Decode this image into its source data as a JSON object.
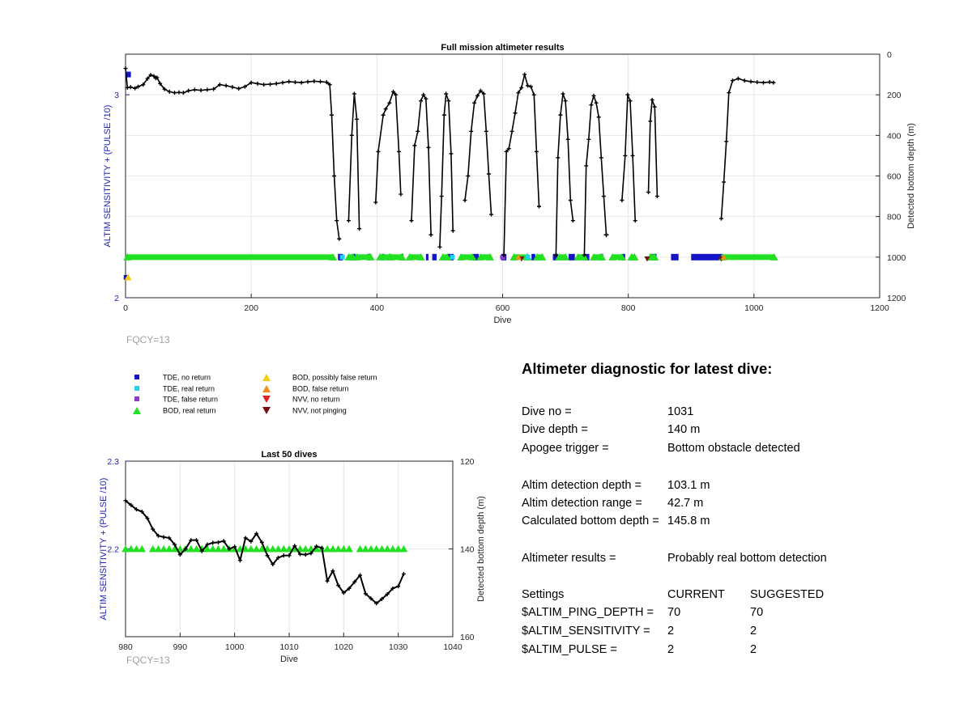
{
  "top_chart": {
    "title": "Full mission altimeter results",
    "xlabel": "Dive",
    "ylabel_left": "ALTIM SENSITIVITY + (PULSE /10)",
    "ylabel_right": "Detected bottom depth (m)",
    "x_ticks": [
      "0",
      "200",
      "400",
      "600",
      "800",
      "1000",
      "1200"
    ],
    "y_left_ticks": [
      "2",
      "3"
    ],
    "y_right_ticks": [
      "0",
      "200",
      "400",
      "600",
      "800",
      "1000",
      "1200"
    ],
    "footnote": "FQCY=13"
  },
  "bottom_chart": {
    "title": "Last 50 dives",
    "xlabel": "Dive",
    "ylabel_left": "ALTIM SENSITIVITY + (PULSE /10)",
    "ylabel_right": "Detected bottom depth (m)",
    "x_ticks": [
      "980",
      "990",
      "1000",
      "1010",
      "1020",
      "1030",
      "1040"
    ],
    "y_left_ticks": [
      "2.3",
      "2.2"
    ],
    "y_right_ticks": [
      "120",
      "140",
      "160"
    ],
    "footnote": "FQCY=13"
  },
  "legend": {
    "items": [
      {
        "label": "TDE, no return",
        "marker": "square",
        "color": "#1515c8"
      },
      {
        "label": "TDE, real return",
        "marker": "square",
        "color": "#22d0f0"
      },
      {
        "label": "TDE, false return",
        "marker": "square",
        "color": "#8a3ec8"
      },
      {
        "label": "BOD, real return",
        "marker": "triangle-up",
        "color": "#22e022"
      },
      {
        "label": "BOD, possibly false return",
        "marker": "triangle-up",
        "color": "#f5cc10"
      },
      {
        "label": "BOD, false return",
        "marker": "triangle-up",
        "color": "#f08c1e"
      },
      {
        "label": "NVV, no return",
        "marker": "triangle-down",
        "color": "#e02020"
      },
      {
        "label": "NVV, not pinging",
        "marker": "triangle-down",
        "color": "#7a0f0f"
      }
    ]
  },
  "diagnostic": {
    "title": "Altimeter diagnostic for latest dive:",
    "rows": [
      {
        "k": "Dive no =",
        "v": "1031"
      },
      {
        "k": "Dive depth =",
        "v": "140 m"
      },
      {
        "k": "Apogee trigger =",
        "v": "Bottom obstacle detected"
      },
      {
        "k": "Altim detection depth =",
        "v": "103.1 m"
      },
      {
        "k": "Altim detection range =",
        "v": "42.7 m"
      },
      {
        "k": "Calculated bottom depth =",
        "v": "145.8 m"
      },
      {
        "k": "Altimeter results =",
        "v": "Probably real bottom detection"
      }
    ],
    "settings_header": {
      "k": "Settings",
      "current": "CURRENT",
      "suggested": "SUGGESTED"
    },
    "settings": [
      {
        "k": "$ALTIM_PING_DEPTH =",
        "current": "70",
        "suggested": "70"
      },
      {
        "k": "$ALTIM_SENSITIVITY =",
        "current": "2",
        "suggested": "2"
      },
      {
        "k": "$ALTIM_PULSE =",
        "current": "2",
        "suggested": "2"
      }
    ]
  },
  "chart_data": [
    {
      "type": "line",
      "title": "Full mission altimeter results",
      "xlabel": "Dive",
      "ylabel": "ALTIM SENSITIVITY + (PULSE /10)",
      "y2label": "Detected bottom depth (m)",
      "xlim": [
        0,
        1200
      ],
      "ylim": [
        2,
        3.2
      ],
      "y2lim": [
        1200,
        0
      ],
      "grid": true,
      "bottom_depth_points": [
        [
          0,
          70
        ],
        [
          3,
          165
        ],
        [
          8,
          162
        ],
        [
          15,
          168
        ],
        [
          20,
          160
        ],
        [
          28,
          150
        ],
        [
          35,
          120
        ],
        [
          40,
          102
        ],
        [
          45,
          108
        ],
        [
          48,
          118
        ],
        [
          50,
          115
        ],
        [
          55,
          145
        ],
        [
          62,
          172
        ],
        [
          70,
          185
        ],
        [
          78,
          190
        ],
        [
          85,
          188
        ],
        [
          92,
          190
        ],
        [
          100,
          180
        ],
        [
          110,
          175
        ],
        [
          120,
          178
        ],
        [
          130,
          175
        ],
        [
          140,
          172
        ],
        [
          150,
          150
        ],
        [
          160,
          155
        ],
        [
          170,
          162
        ],
        [
          180,
          170
        ],
        [
          190,
          160
        ],
        [
          200,
          140
        ],
        [
          210,
          145
        ],
        [
          220,
          150
        ],
        [
          230,
          148
        ],
        [
          240,
          145
        ],
        [
          250,
          140
        ],
        [
          260,
          135
        ],
        [
          270,
          138
        ],
        [
          280,
          140
        ],
        [
          290,
          136
        ],
        [
          300,
          133
        ],
        [
          310,
          135
        ],
        [
          320,
          138
        ],
        [
          325,
          150
        ],
        [
          328,
          300
        ],
        [
          332,
          600
        ],
        [
          336,
          820
        ],
        [
          340,
          910
        ],
        [
          355,
          820
        ],
        [
          360,
          400
        ],
        [
          364,
          195
        ],
        [
          368,
          320
        ],
        [
          372,
          860
        ],
        [
          398,
          730
        ],
        [
          402,
          480
        ],
        [
          410,
          300
        ],
        [
          414,
          270
        ],
        [
          420,
          240
        ],
        [
          426,
          185
        ],
        [
          430,
          200
        ],
        [
          435,
          480
        ],
        [
          438,
          690
        ],
        [
          455,
          820
        ],
        [
          460,
          450
        ],
        [
          465,
          380
        ],
        [
          470,
          230
        ],
        [
          474,
          200
        ],
        [
          478,
          220
        ],
        [
          482,
          460
        ],
        [
          486,
          890
        ],
        [
          500,
          950
        ],
        [
          503,
          700
        ],
        [
          507,
          300
        ],
        [
          510,
          195
        ],
        [
          514,
          230
        ],
        [
          518,
          490
        ],
        [
          521,
          870
        ],
        [
          540,
          720
        ],
        [
          545,
          600
        ],
        [
          550,
          380
        ],
        [
          555,
          240
        ],
        [
          560,
          205
        ],
        [
          565,
          180
        ],
        [
          570,
          195
        ],
        [
          574,
          380
        ],
        [
          578,
          590
        ],
        [
          582,
          790
        ],
        [
          602,
          990
        ],
        [
          606,
          480
        ],
        [
          610,
          465
        ],
        [
          615,
          380
        ],
        [
          620,
          290
        ],
        [
          625,
          190
        ],
        [
          630,
          165
        ],
        [
          635,
          100
        ],
        [
          640,
          155
        ],
        [
          645,
          160
        ],
        [
          650,
          200
        ],
        [
          654,
          480
        ],
        [
          658,
          750
        ],
        [
          685,
          990
        ],
        [
          688,
          510
        ],
        [
          692,
          300
        ],
        [
          696,
          195
        ],
        [
          700,
          230
        ],
        [
          704,
          420
        ],
        [
          708,
          720
        ],
        [
          712,
          820
        ],
        [
          730,
          990
        ],
        [
          733,
          550
        ],
        [
          737,
          420
        ],
        [
          741,
          250
        ],
        [
          745,
          205
        ],
        [
          749,
          240
        ],
        [
          753,
          310
        ],
        [
          757,
          510
        ],
        [
          761,
          700
        ],
        [
          765,
          890
        ],
        [
          790,
          720
        ],
        [
          795,
          500
        ],
        [
          799,
          200
        ],
        [
          803,
          230
        ],
        [
          807,
          500
        ],
        [
          811,
          820
        ],
        [
          832,
          680
        ],
        [
          835,
          330
        ],
        [
          838,
          225
        ],
        [
          842,
          260
        ],
        [
          846,
          700
        ],
        [
          948,
          810
        ],
        [
          952,
          630
        ],
        [
          956,
          430
        ],
        [
          960,
          190
        ],
        [
          966,
          130
        ],
        [
          975,
          120
        ],
        [
          985,
          130
        ],
        [
          995,
          135
        ],
        [
          1005,
          138
        ],
        [
          1015,
          140
        ],
        [
          1025,
          137
        ],
        [
          1031,
          140
        ]
      ],
      "altim_markers": {
        "BOD, real return": [
          [
            0,
            2.2
          ],
          [
            1030,
            2.2
          ]
        ],
        "TDE, no return": [
          [
            0,
            2.2
          ],
          [
            1030,
            2.2
          ]
        ],
        "BOD, possibly false return": [
          [
            3,
            2.1
          ]
        ]
      }
    },
    {
      "type": "line",
      "title": "Last 50 dives",
      "xlabel": "Dive",
      "ylabel": "ALTIM SENSITIVITY + (PULSE /10)",
      "y2label": "Detected bottom depth (m)",
      "xlim": [
        980,
        1040
      ],
      "ylim": [
        2.1,
        2.3
      ],
      "y2lim": [
        160,
        120
      ],
      "grid": true,
      "bottom_depth_points": [
        [
          980,
          129
        ],
        [
          981,
          130
        ],
        [
          982,
          131
        ],
        [
          983,
          131.5
        ],
        [
          984,
          133
        ],
        [
          985,
          135.5
        ],
        [
          986,
          137
        ],
        [
          987,
          137.3
        ],
        [
          988,
          137.5
        ],
        [
          989,
          139
        ],
        [
          990,
          141.3
        ],
        [
          991,
          140
        ],
        [
          992,
          138
        ],
        [
          993,
          138
        ],
        [
          994,
          140.5
        ],
        [
          995,
          139
        ],
        [
          996,
          138.6
        ],
        [
          997,
          138.5
        ],
        [
          998,
          138.2
        ],
        [
          999,
          140
        ],
        [
          1000,
          139.5
        ],
        [
          1001,
          142.6
        ],
        [
          1002,
          137.5
        ],
        [
          1003,
          138.3
        ],
        [
          1004,
          136.5
        ],
        [
          1005,
          138.5
        ],
        [
          1006,
          141.5
        ],
        [
          1007,
          143.5
        ],
        [
          1008,
          142
        ],
        [
          1009,
          141.5
        ],
        [
          1010,
          141.5
        ],
        [
          1011,
          139.3
        ],
        [
          1012,
          141.2
        ],
        [
          1013,
          141.3
        ],
        [
          1014,
          141
        ],
        [
          1015,
          139.4
        ],
        [
          1016,
          139.8
        ],
        [
          1017,
          147.3
        ],
        [
          1018,
          145
        ],
        [
          1019,
          148.3
        ],
        [
          1020,
          150
        ],
        [
          1021,
          149
        ],
        [
          1022,
          147.5
        ],
        [
          1023,
          146
        ],
        [
          1024,
          150.2
        ],
        [
          1025,
          151.3
        ],
        [
          1026,
          152.4
        ],
        [
          1027,
          151.4
        ],
        [
          1028,
          150.3
        ],
        [
          1029,
          149
        ],
        [
          1030,
          148.5
        ],
        [
          1031,
          145.7
        ]
      ],
      "altim_markers": {
        "BOD, real return": [
          [
            980,
            2.2
          ],
          [
            981,
            2.2
          ],
          [
            982,
            2.2
          ],
          [
            983,
            2.2
          ],
          [
            985,
            2.2
          ],
          [
            986,
            2.2
          ],
          [
            987,
            2.2
          ],
          [
            988,
            2.2
          ],
          [
            989,
            2.2
          ],
          [
            990,
            2.2
          ],
          [
            991,
            2.2
          ],
          [
            992,
            2.2
          ],
          [
            993,
            2.2
          ],
          [
            994,
            2.2
          ],
          [
            995,
            2.2
          ],
          [
            996,
            2.2
          ],
          [
            997,
            2.2
          ],
          [
            998,
            2.2
          ],
          [
            999,
            2.2
          ],
          [
            1000,
            2.2
          ],
          [
            1001,
            2.2
          ],
          [
            1002,
            2.2
          ],
          [
            1003,
            2.2
          ],
          [
            1004,
            2.2
          ],
          [
            1005,
            2.2
          ],
          [
            1006,
            2.2
          ],
          [
            1007,
            2.2
          ],
          [
            1008,
            2.2
          ],
          [
            1009,
            2.2
          ],
          [
            1010,
            2.2
          ],
          [
            1011,
            2.2
          ],
          [
            1012,
            2.2
          ],
          [
            1013,
            2.2
          ],
          [
            1014,
            2.2
          ],
          [
            1015,
            2.2
          ],
          [
            1016,
            2.2
          ],
          [
            1017,
            2.2
          ],
          [
            1018,
            2.2
          ],
          [
            1019,
            2.2
          ],
          [
            1020,
            2.2
          ],
          [
            1021,
            2.2
          ],
          [
            1023,
            2.2
          ],
          [
            1024,
            2.2
          ],
          [
            1025,
            2.2
          ],
          [
            1026,
            2.2
          ],
          [
            1027,
            2.2
          ],
          [
            1028,
            2.2
          ],
          [
            1029,
            2.2
          ],
          [
            1030,
            2.2
          ],
          [
            1031,
            2.2
          ]
        ]
      }
    }
  ]
}
